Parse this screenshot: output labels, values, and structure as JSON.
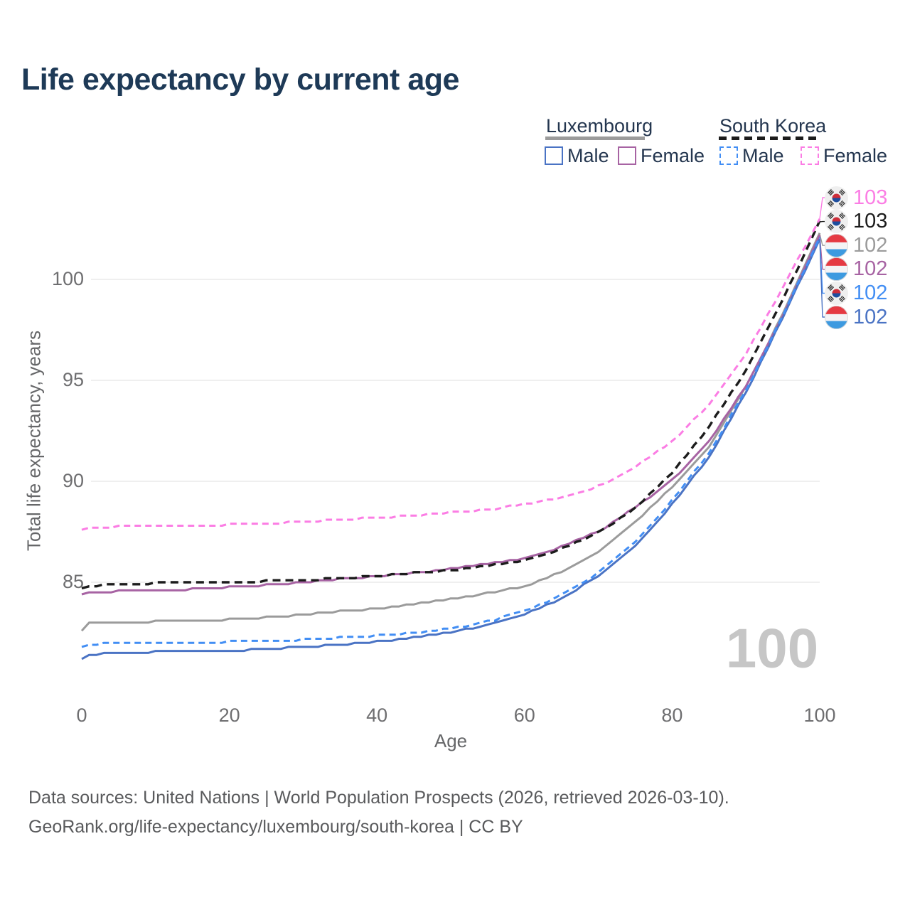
{
  "title": "Life expectancy by current age",
  "legend": {
    "groups": [
      {
        "label": "Luxembourg",
        "line_style": "solid",
        "line_color": "#9b9b9b",
        "items": [
          {
            "label": "Male",
            "color": "#4a73c4",
            "dashed": false
          },
          {
            "label": "Female",
            "color": "#a763a3",
            "dashed": false
          }
        ]
      },
      {
        "label": "South Korea",
        "line_style": "dashed",
        "line_color": "#1c1c1c",
        "items": [
          {
            "label": "Male",
            "color": "#428ef4",
            "dashed": true
          },
          {
            "label": "Female",
            "color": "#fb7de4",
            "dashed": true
          }
        ]
      }
    ]
  },
  "watermark": "100",
  "footer": {
    "line1": "Data sources: United Nations | World Population Prospects (2026, retrieved 2026-03-10).",
    "line2": "GeoRank.org/life-expectancy/luxembourg/south-korea | CC BY"
  },
  "chart_data": {
    "type": "line",
    "title": "Life expectancy by current age",
    "xlabel": "Age",
    "ylabel": "Total life expectancy, years",
    "xlim": [
      0,
      100
    ],
    "ylim": [
      80,
      104
    ],
    "x_ticks": [
      0,
      20,
      40,
      60,
      80,
      100
    ],
    "y_ticks": [
      85,
      90,
      95,
      100
    ],
    "grid": "horizontal-only",
    "legend_position": "top-right",
    "ages": [
      0,
      1,
      5,
      10,
      15,
      20,
      25,
      30,
      35,
      40,
      45,
      50,
      55,
      60,
      65,
      70,
      75,
      80,
      85,
      90,
      95,
      100
    ],
    "series": [
      {
        "name": "Luxembourg Both Sexes",
        "country": "luxembourg",
        "sex": "both",
        "style": "solid",
        "color": "#9b9b9b",
        "width": 3,
        "values": [
          82.6,
          82.95,
          83.0,
          83.05,
          83.1,
          83.15,
          83.25,
          83.4,
          83.55,
          83.7,
          83.9,
          84.15,
          84.45,
          84.8,
          85.5,
          86.5,
          87.95,
          89.7,
          91.7,
          94.65,
          98.3,
          102.25
        ]
      },
      {
        "name": "Luxembourg Female",
        "country": "luxembourg",
        "sex": "female",
        "style": "solid",
        "color": "#a763a3",
        "width": 3,
        "values": [
          84.35,
          84.45,
          84.55,
          84.6,
          84.65,
          84.75,
          84.85,
          85.0,
          85.15,
          85.3,
          85.45,
          85.65,
          85.9,
          86.2,
          86.75,
          87.5,
          88.7,
          90.05,
          91.95,
          94.7,
          98.2,
          102.2
        ]
      },
      {
        "name": "South Korea Both Sexes",
        "country": "south-korea",
        "sex": "both",
        "style": "dashed",
        "color": "#1c1c1c",
        "width": 3.4,
        "dash": "11 7",
        "values": [
          84.7,
          84.8,
          84.9,
          84.95,
          84.95,
          85.0,
          85.05,
          85.1,
          85.2,
          85.3,
          85.45,
          85.6,
          85.8,
          86.1,
          86.65,
          87.45,
          88.65,
          90.4,
          92.7,
          95.5,
          99.0,
          102.85
        ]
      },
      {
        "name": "Luxembourg Male",
        "country": "luxembourg",
        "sex": "male",
        "style": "solid",
        "color": "#4a73c4",
        "width": 3,
        "values": [
          81.2,
          81.4,
          81.5,
          81.55,
          81.6,
          81.6,
          81.7,
          81.8,
          81.9,
          82.05,
          82.25,
          82.5,
          82.9,
          83.4,
          84.2,
          85.3,
          86.8,
          88.85,
          91.2,
          94.4,
          98.1,
          102.0
        ]
      },
      {
        "name": "South Korea Male",
        "country": "south-korea",
        "sex": "male",
        "style": "dashed",
        "color": "#428ef4",
        "width": 3,
        "dash": "9 6",
        "values": [
          81.75,
          81.9,
          82.0,
          82.0,
          82.0,
          82.05,
          82.1,
          82.15,
          82.25,
          82.35,
          82.5,
          82.7,
          83.05,
          83.55,
          84.35,
          85.45,
          87.0,
          89.05,
          91.4,
          94.5,
          98.2,
          102.1
        ]
      },
      {
        "name": "South Korea Female",
        "country": "south-korea",
        "sex": "female",
        "style": "dashed",
        "color": "#fb7de4",
        "width": 3,
        "dash": "9 6",
        "values": [
          87.6,
          87.7,
          87.75,
          87.8,
          87.8,
          87.85,
          87.9,
          88.0,
          88.1,
          88.2,
          88.3,
          88.45,
          88.6,
          88.85,
          89.2,
          89.75,
          90.7,
          91.95,
          93.8,
          96.3,
          99.6,
          103.0
        ]
      }
    ],
    "end_labels": [
      {
        "text": "103",
        "series": "South Korea Female",
        "flag": "kr",
        "color": "#fb7de4",
        "end_value": 103.0
      },
      {
        "text": "103",
        "series": "South Korea Both Sexes",
        "flag": "kr",
        "color": "#1c1c1c",
        "end_value": 102.85
      },
      {
        "text": "102",
        "series": "Luxembourg Both Sexes",
        "flag": "lu",
        "color": "#9b9b9b",
        "end_value": 102.25
      },
      {
        "text": "102",
        "series": "Luxembourg Female",
        "flag": "lu",
        "color": "#a763a3",
        "end_value": 102.2
      },
      {
        "text": "102",
        "series": "South Korea Male",
        "flag": "kr",
        "color": "#428ef4",
        "end_value": 102.1
      },
      {
        "text": "102",
        "series": "Luxembourg Male",
        "flag": "lu",
        "color": "#4a73c4",
        "end_value": 102.0
      }
    ]
  }
}
